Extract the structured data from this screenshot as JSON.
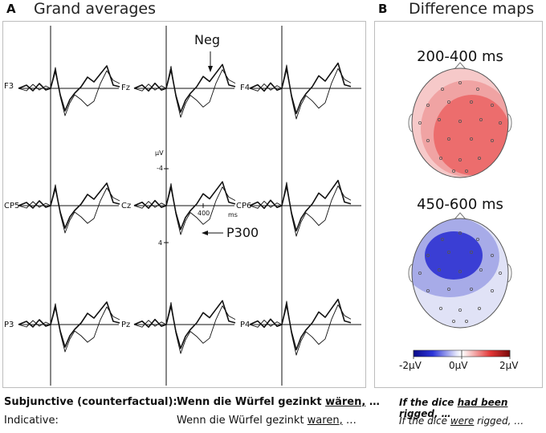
{
  "panel_a": {
    "letter": "A",
    "title": "Grand averages",
    "channels": [
      "F3",
      "Fz",
      "F4",
      "CP5",
      "Cz",
      "CP6",
      "P3",
      "Pz",
      "P4"
    ],
    "neg_label": "Neg",
    "p300_label": "P300",
    "axis": {
      "unit": "µV",
      "neg_tick": "-4",
      "pos_tick": "4",
      "time_tick": "400",
      "time_unit": "ms"
    }
  },
  "panel_b": {
    "letter": "B",
    "title": "Difference maps",
    "maps": [
      {
        "range": "200-400 ms",
        "colors": {
          "base": "#f6c9c9",
          "mid": "#f0a3a3",
          "core": "#ec6d6d"
        }
      },
      {
        "range": "450-600 ms",
        "colors": {
          "base": "#e0e2f6",
          "mid": "#a7abe8",
          "core": "#3a3ed4"
        }
      }
    ],
    "colorbar": {
      "min_label": "-2µV",
      "mid_label": "0µV",
      "max_label": "2µV"
    }
  },
  "sentences": {
    "subjunctive": {
      "label": "Subjunctive (counterfactual):",
      "german_before": "Wenn die Würfel gezinkt ",
      "german_verb": "wären,",
      "german_after": " …",
      "english_before": "If the dice ",
      "english_verb": "had been",
      "english_after": " rigged, …"
    },
    "indicative": {
      "label": "Indicative:",
      "german_before": "Wenn die Würfel gezinkt ",
      "german_verb": "waren,",
      "german_after": " …",
      "english_before": "If the dice ",
      "english_verb": "were",
      "english_after": " rigged, …"
    }
  }
}
